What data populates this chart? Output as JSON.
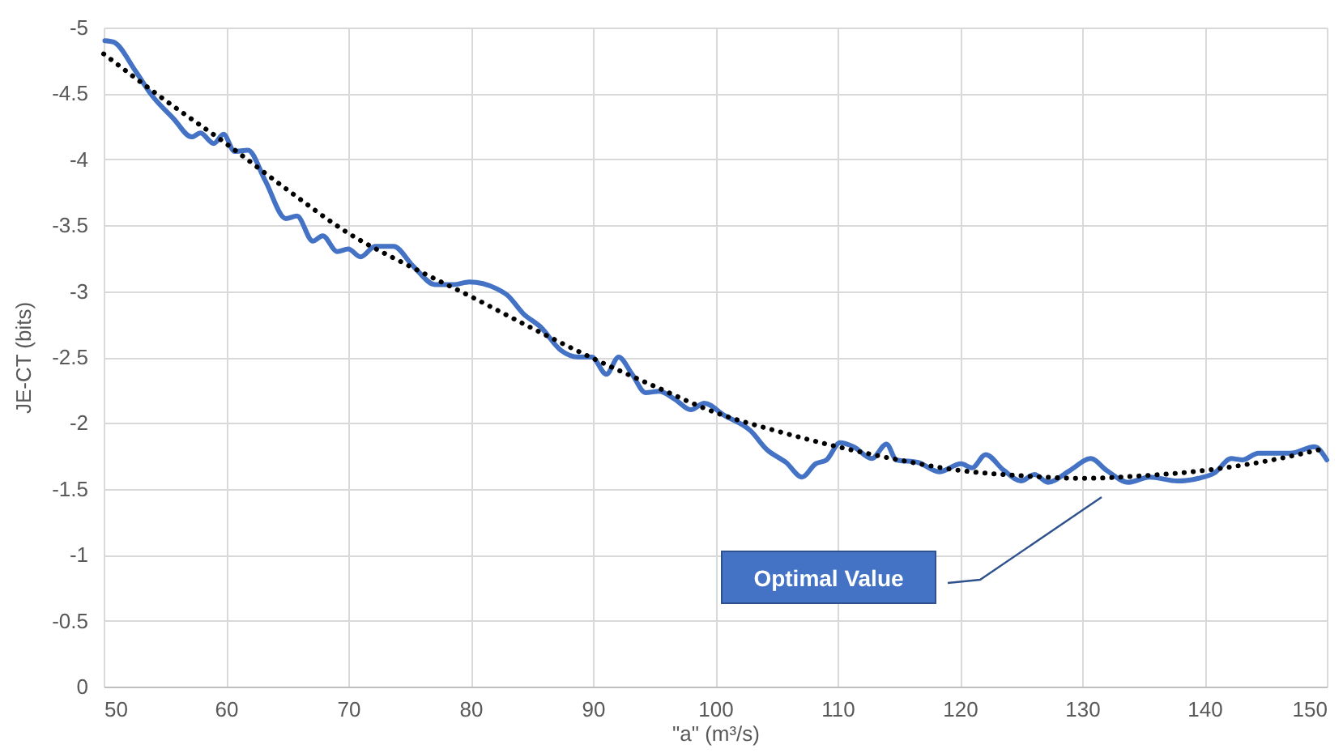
{
  "chart_data": {
    "type": "line",
    "xlabel": "\"a\" (m³/s)",
    "ylabel": "JE-CT (bits)",
    "xlim": [
      50,
      150
    ],
    "xticks": [
      50,
      60,
      70,
      80,
      90,
      100,
      110,
      120,
      130,
      140,
      150
    ],
    "ylim": [
      0,
      -5
    ],
    "yticks": [
      0,
      -0.5,
      -1,
      -1.5,
      -2,
      -2.5,
      -3,
      -3.5,
      -4,
      -4.5,
      -5
    ],
    "grid": true,
    "marker": "none",
    "series": [
      {
        "color": "#4472c4",
        "line_style": "solid",
        "x": [
          50.1,
          50.8,
          52.6,
          53.9,
          55.7,
          57.2,
          57.9,
          59.0,
          59.8,
          60.7,
          61.8,
          63.2,
          64.9,
          65.8,
          67.1,
          67.9,
          69.1,
          70.0,
          71.0,
          72.2,
          73.7,
          75.3,
          77.1,
          78.6,
          79.9,
          82.1,
          83.0,
          84.3,
          85.7,
          87.4,
          88.8,
          89.9,
          91.1,
          92.1,
          93.2,
          94.3,
          95.4,
          96.7,
          98.0,
          99.1,
          100.7,
          102.9,
          104.2,
          105.8,
          107.1,
          108.2,
          109.1,
          110.2,
          111.3,
          112.8,
          114.0,
          114.8,
          116.6,
          118.3,
          120.1,
          121.0,
          122.1,
          123.6,
          125.0,
          126.1,
          127.2,
          129.0,
          130.7,
          132.0,
          133.8,
          135.5,
          137.8,
          139.5,
          140.8,
          142.2,
          143.1,
          144.4,
          147.0,
          149.0,
          150.0
        ],
        "values": [
          -4.9,
          -4.89,
          -4.67,
          -4.49,
          -4.31,
          -4.17,
          -4.2,
          -4.12,
          -4.19,
          -4.06,
          -4.07,
          -3.84,
          -3.55,
          -3.57,
          -3.38,
          -3.42,
          -3.3,
          -3.32,
          -3.26,
          -3.34,
          -3.34,
          -3.19,
          -3.05,
          -3.05,
          -3.07,
          -3.02,
          -2.97,
          -2.83,
          -2.73,
          -2.55,
          -2.5,
          -2.5,
          -2.37,
          -2.5,
          -2.37,
          -2.23,
          -2.24,
          -2.18,
          -2.1,
          -2.15,
          -2.06,
          -1.94,
          -1.8,
          -1.7,
          -1.59,
          -1.69,
          -1.72,
          -1.85,
          -1.82,
          -1.73,
          -1.84,
          -1.72,
          -1.7,
          -1.63,
          -1.69,
          -1.66,
          -1.76,
          -1.64,
          -1.56,
          -1.61,
          -1.55,
          -1.64,
          -1.73,
          -1.64,
          -1.55,
          -1.59,
          -1.56,
          -1.58,
          -1.62,
          -1.73,
          -1.72,
          -1.77,
          -1.77,
          -1.82,
          -1.72
        ]
      },
      {
        "type": "line",
        "color": "#000000",
        "line_style": "dotted",
        "x": [
          50,
          55,
          60,
          65,
          70,
          75,
          80,
          85,
          90,
          95,
          100,
          105,
          110,
          115,
          120,
          125,
          130,
          135,
          140,
          145,
          150
        ],
        "values": [
          -4.8,
          -4.45,
          -4.12,
          -3.77,
          -3.44,
          -3.19,
          -2.96,
          -2.72,
          -2.49,
          -2.28,
          -2.08,
          -1.94,
          -1.82,
          -1.72,
          -1.64,
          -1.6,
          -1.58,
          -1.6,
          -1.64,
          -1.71,
          -1.81
        ]
      }
    ],
    "annotations": [
      "Optimal Value"
    ]
  }
}
